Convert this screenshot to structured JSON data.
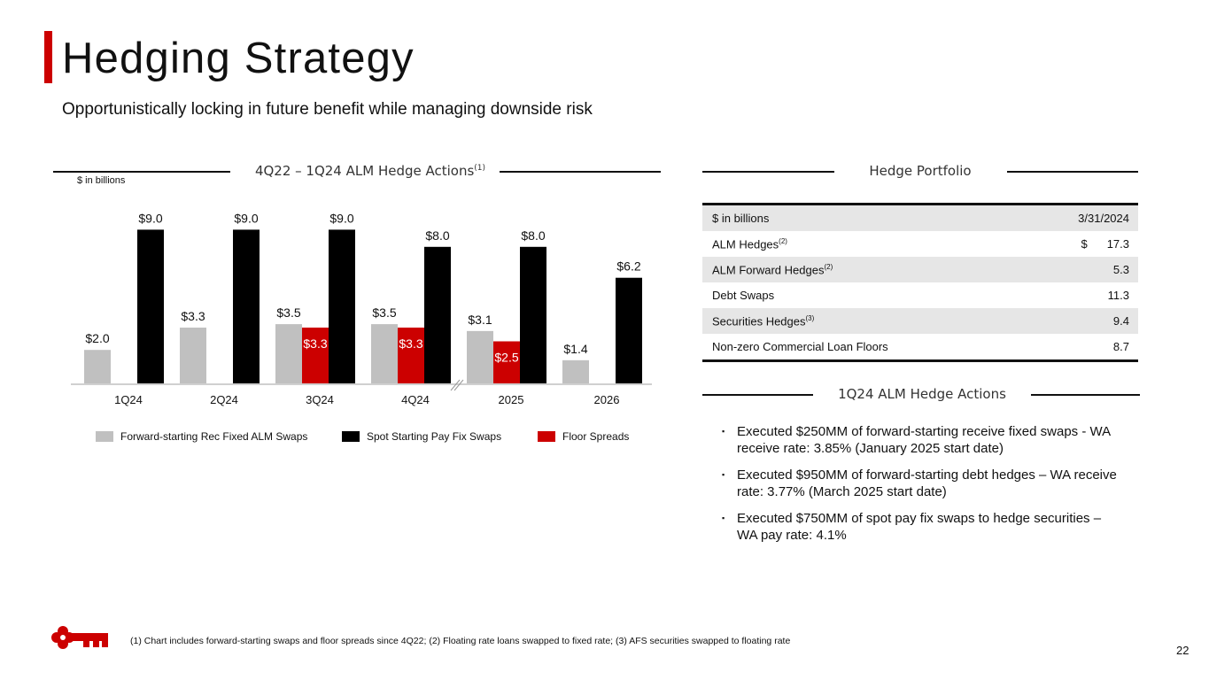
{
  "header": {
    "title": "Hedging Strategy",
    "subtitle": "Opportunistically locking in future benefit while managing downside risk"
  },
  "chart_section": {
    "heading": "4Q22 – 1Q24 ALM Hedge Actions",
    "heading_sup": "(1)",
    "units_note": "$ in billions"
  },
  "chart_data": {
    "type": "bar",
    "categories": [
      "1Q24",
      "2Q24",
      "3Q24",
      "4Q24",
      "2025",
      "2026"
    ],
    "series": [
      {
        "name": "Forward-starting Rec Fixed ALM Swaps",
        "color": "#c0c0c0",
        "values": [
          2.0,
          3.3,
          3.5,
          3.5,
          3.1,
          1.4
        ],
        "labels": [
          "$2.0",
          "$3.3",
          "$3.5",
          "$3.5",
          "$3.1",
          "$1.4"
        ]
      },
      {
        "name": "Floor Spreads",
        "color": "#cc0000",
        "values": [
          null,
          null,
          3.3,
          3.3,
          2.5,
          null
        ],
        "labels": [
          "",
          "",
          "$3.3",
          "$3.3",
          "$2.5",
          ""
        ]
      },
      {
        "name": "Spot Starting Pay Fix Swaps",
        "color": "#000000",
        "values": [
          9.0,
          9.0,
          9.0,
          8.0,
          8.0,
          6.2
        ],
        "labels": [
          "$9.0",
          "$9.0",
          "$9.0",
          "$8.0",
          "$8.0",
          "$6.2"
        ]
      }
    ],
    "ylim": [
      0,
      9.5
    ],
    "axis_break_between": [
      "4Q24",
      "2025"
    ],
    "legend_order": [
      "Forward-starting Rec Fixed ALM Swaps",
      "Spot Starting Pay Fix Swaps",
      "Floor Spreads"
    ],
    "legend_position": "bottom",
    "grid": false
  },
  "portfolio": {
    "heading": "Hedge Portfolio",
    "header_row": {
      "label": "$ in billions",
      "value": "3/31/2024"
    },
    "rows": [
      {
        "label": "ALM Hedges",
        "sup": "(2)",
        "dollar": "$",
        "value": "17.3"
      },
      {
        "label": "ALM Forward Hedges",
        "sup": "(2)",
        "dollar": "",
        "value": "5.3"
      },
      {
        "label": "Debt Swaps",
        "sup": "",
        "dollar": "",
        "value": "11.3"
      },
      {
        "label": "Securities Hedges",
        "sup": "(3)",
        "dollar": "",
        "value": "9.4"
      },
      {
        "label": "Non-zero Commercial Loan Floors",
        "sup": "",
        "dollar": "",
        "value": "8.7"
      }
    ]
  },
  "actions": {
    "heading": "1Q24 ALM Hedge Actions",
    "bullet_glyph": "▪",
    "items": [
      "Executed $250MM of forward-starting receive fixed swaps - WA receive rate: 3.85% (January 2025 start date)",
      "Executed $950MM of forward-starting debt hedges – WA receive rate: 3.77% (March 2025 start date)",
      "Executed $750MM of spot pay fix swaps to hedge securities – WA pay rate: 4.1%"
    ]
  },
  "footer": {
    "footnote": "(1) Chart includes forward-starting swaps and floor spreads since 4Q22; (2) Floating rate loans swapped to fixed rate; (3) AFS securities swapped to floating rate",
    "page_number": "22",
    "logo_icon": "key-logo-icon",
    "brand_color": "#cc0000"
  }
}
